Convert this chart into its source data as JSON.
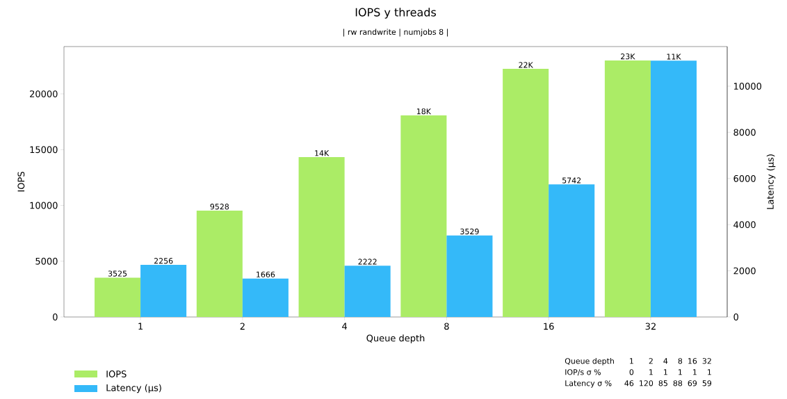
{
  "chart_data": {
    "type": "bar",
    "title": "IOPS y threads",
    "subtitle": "| rw randwrite | numjobs 8 |",
    "xlabel": "Queue depth",
    "ylabel": "IOPS",
    "y2label": "Latency (µs)",
    "categories": [
      "1",
      "2",
      "4",
      "8",
      "16",
      "32"
    ],
    "series": [
      {
        "name": "IOPS",
        "color": "#abec66",
        "axis": "y",
        "values": [
          3525,
          9528,
          14330,
          18070,
          22240,
          22990
        ],
        "value_labels": [
          "3525",
          "9528",
          "14K",
          "18K",
          "22K",
          "23K"
        ]
      },
      {
        "name": "Latency (µs)",
        "color": "#34b9f9",
        "axis": "y2",
        "values": [
          2256,
          1666,
          2222,
          3529,
          5742,
          11110
        ],
        "value_labels": [
          "2256",
          "1666",
          "2222",
          "3529",
          "5742",
          "11K"
        ]
      }
    ],
    "ylim": [
      0,
      24240
    ],
    "yticks": [
      0,
      5000,
      10000,
      15000,
      20000
    ],
    "y2lim": [
      0,
      11717
    ],
    "y2ticks": [
      0,
      2000,
      4000,
      6000,
      8000,
      10000
    ],
    "legend": "bottom left",
    "annotations": [
      "Queue depth",
      "1",
      "2",
      "4",
      "8",
      "16",
      "32",
      "IOP/s σ %",
      "0",
      "1",
      "1",
      "1",
      "1",
      "1",
      "Latency σ %",
      "46",
      "120",
      "85",
      "88",
      "69",
      "59"
    ]
  }
}
